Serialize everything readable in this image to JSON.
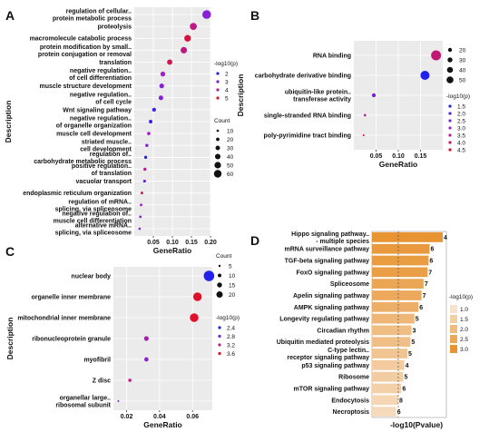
{
  "chart_data": [
    {
      "panel": "A",
      "type": "scatter",
      "xlabel": "GeneRatio",
      "ylabel": "Description",
      "xlim": [
        0,
        0.2
      ],
      "xticks": [
        "0.05",
        "0.10",
        "0.15",
        "0.20"
      ],
      "categories": [
        [
          "regulation of cellular..",
          "protein metabolic process"
        ],
        [
          "proteolysis"
        ],
        [
          "macromolecule catabolic process"
        ],
        [
          "protein modification by small..",
          "protein conjugation or removal"
        ],
        [
          "translation"
        ],
        [
          "negative regulation..",
          "of cell differentiation"
        ],
        [
          "muscle structure development"
        ],
        [
          "negative regulation..",
          "of cell cycle"
        ],
        [
          "Wnt signaling pathway"
        ],
        [
          "negative regulation..",
          "of organelle organization"
        ],
        [
          "muscle cell development"
        ],
        [
          "striated muscle..",
          "cell development"
        ],
        [
          "regulation of..",
          "carbohydrate metabolic process"
        ],
        [
          "positive regulation..",
          "of translation"
        ],
        [
          "vacuolar transport"
        ],
        [
          "endoplasmic reticulum organization"
        ],
        [
          "regulation of mRNA..",
          "splicing, via spliceosome"
        ],
        [
          "negative regulation of..",
          "muscle cell differentiation"
        ],
        [
          "alternative mRNA..",
          "splicing, via spliceosome"
        ]
      ],
      "x": [
        0.19,
        0.155,
        0.14,
        0.13,
        0.093,
        0.075,
        0.072,
        0.07,
        0.052,
        0.043,
        0.038,
        0.033,
        0.03,
        0.028,
        0.027,
        0.02,
        0.018,
        0.016,
        0.014
      ],
      "count": [
        60,
        45,
        42,
        40,
        30,
        26,
        25,
        24,
        18,
        15,
        13,
        11,
        10,
        10,
        9,
        7,
        6,
        5,
        4
      ],
      "neglog10p": [
        3.2,
        4.2,
        4.8,
        4.2,
        4.6,
        3.5,
        3.2,
        3.2,
        2.3,
        2.3,
        3.6,
        3.2,
        2.0,
        4.0,
        2.8,
        4.5,
        3.4,
        3.0,
        3.0
      ],
      "legend_color_title": "-log10(p)",
      "legend_color": [
        "2",
        "3",
        "4",
        "5"
      ],
      "legend_color_values": [
        2,
        3,
        4,
        5
      ],
      "legend_size_title": "Count",
      "legend_size": [
        "10",
        "20",
        "30",
        "40",
        "50",
        "60"
      ],
      "legend_size_values": [
        10,
        20,
        30,
        40,
        50,
        60
      ]
    },
    {
      "panel": "B",
      "type": "scatter",
      "xlabel": "GeneRatio",
      "ylabel": "Description",
      "xlim": [
        0.0,
        0.2
      ],
      "xticks": [
        "0.05",
        "0.10",
        "0.15"
      ],
      "categories": [
        [
          "RNA binding"
        ],
        [
          "carbohydrate derivative binding"
        ],
        [
          "ubiquitin-like protein..",
          "transferase activity"
        ],
        [
          "single-stranded RNA binding"
        ],
        [
          "poly-pyrimidine tract binding"
        ]
      ],
      "x": [
        0.185,
        0.16,
        0.045,
        0.025,
        0.022
      ],
      "count": [
        30,
        27,
        10,
        5,
        3
      ],
      "neglog10p": [
        3.8,
        1.5,
        2.5,
        3.5,
        4.5
      ],
      "legend_color_title": "-log10(p)",
      "legend_color": [
        "1.5",
        "2.0",
        "2.5",
        "3.0",
        "3.5",
        "4.0",
        "4.5"
      ],
      "legend_color_values": [
        1.5,
        2.0,
        2.5,
        3.0,
        3.5,
        4.0,
        4.5
      ],
      "legend_size_title": "",
      "legend_size": [
        "20",
        "30",
        "40",
        "50"
      ],
      "legend_size_values": [
        20,
        30,
        40,
        50
      ]
    },
    {
      "panel": "C",
      "type": "scatter",
      "xlabel": "GeneRatio",
      "ylabel": "Description",
      "xlim": [
        0.012,
        0.072
      ],
      "xticks": [
        "0.02",
        "0.04",
        "0.06"
      ],
      "categories": [
        [
          "nuclear body"
        ],
        [
          "organelle inner membrane"
        ],
        [
          "mitochondrial inner membrane"
        ],
        [
          "ribonucleoprotein granule"
        ],
        [
          "myofibril"
        ],
        [
          "Z disc"
        ],
        [
          "organellar large..",
          "ribosomal subunit"
        ]
      ],
      "x": [
        0.07,
        0.063,
        0.061,
        0.032,
        0.032,
        0.022,
        0.015
      ],
      "count": [
        22,
        18,
        18,
        10,
        9,
        7,
        4
      ],
      "neglog10p": [
        2.4,
        3.6,
        3.6,
        3.1,
        2.9,
        3.3,
        2.8
      ],
      "legend_color_title": "-log10(p)",
      "legend_color": [
        "2.4",
        "2.8",
        "3.2",
        "3.6"
      ],
      "legend_color_values": [
        2.4,
        2.8,
        3.2,
        3.6
      ],
      "legend_size_title": "Count",
      "legend_size": [
        "5",
        "10",
        "15",
        "20"
      ],
      "legend_size_values": [
        5,
        10,
        15,
        20
      ]
    },
    {
      "panel": "D",
      "type": "bar",
      "orientation": "horizontal",
      "xlabel": "-log10(Pvalue)",
      "categories": [
        [
          "Hippo signaling pathway..",
          "- multiple species"
        ],
        [
          "mRNA surveillance pathway"
        ],
        [
          "TGF-beta signaling pathway"
        ],
        [
          "FoxO signaling pathway"
        ],
        [
          "Spliceosome"
        ],
        [
          "Apelin signaling pathway"
        ],
        [
          "AMPK signaling pathway"
        ],
        [
          "Longevity regulating pathway"
        ],
        [
          "Circadian rhythm"
        ],
        [
          "Ubiquitin mediated proteolysis"
        ],
        [
          "C-type lectin..",
          "receptor signaling pathway"
        ],
        [
          "p53 signaling pathway"
        ],
        [
          "Ribosome"
        ],
        [
          "mTOR signaling pathway"
        ],
        [
          "Endocytosis"
        ],
        [
          "Necroptosis"
        ]
      ],
      "values": [
        3.5,
        2.85,
        2.8,
        2.75,
        2.55,
        2.45,
        2.3,
        2.1,
        1.95,
        1.9,
        1.75,
        1.6,
        1.55,
        1.45,
        1.3,
        1.2
      ],
      "bar_labels": [
        "4",
        "6",
        "6",
        "7",
        "7",
        "7",
        "6",
        "5",
        "3",
        "5",
        "5",
        "4",
        "5",
        "6",
        "8",
        "6"
      ],
      "xlim": [
        0,
        3.5
      ],
      "reference_line": 1.3,
      "legend_color_title": "-log10(p)",
      "legend_color": [
        "1.0",
        "1.5",
        "2.0",
        "2.5",
        "3.0"
      ],
      "legend_color_values": [
        1.0,
        1.5,
        2.0,
        2.5,
        3.0
      ]
    }
  ],
  "panel_labels": [
    "A",
    "B",
    "C",
    "D"
  ],
  "colors": {
    "scatter_low": "#2222ee",
    "scatter_mid": "#a020d0",
    "scatter_high": "#e0102a",
    "bar_low": "#f7e2cc",
    "bar_high": "#e89432"
  }
}
